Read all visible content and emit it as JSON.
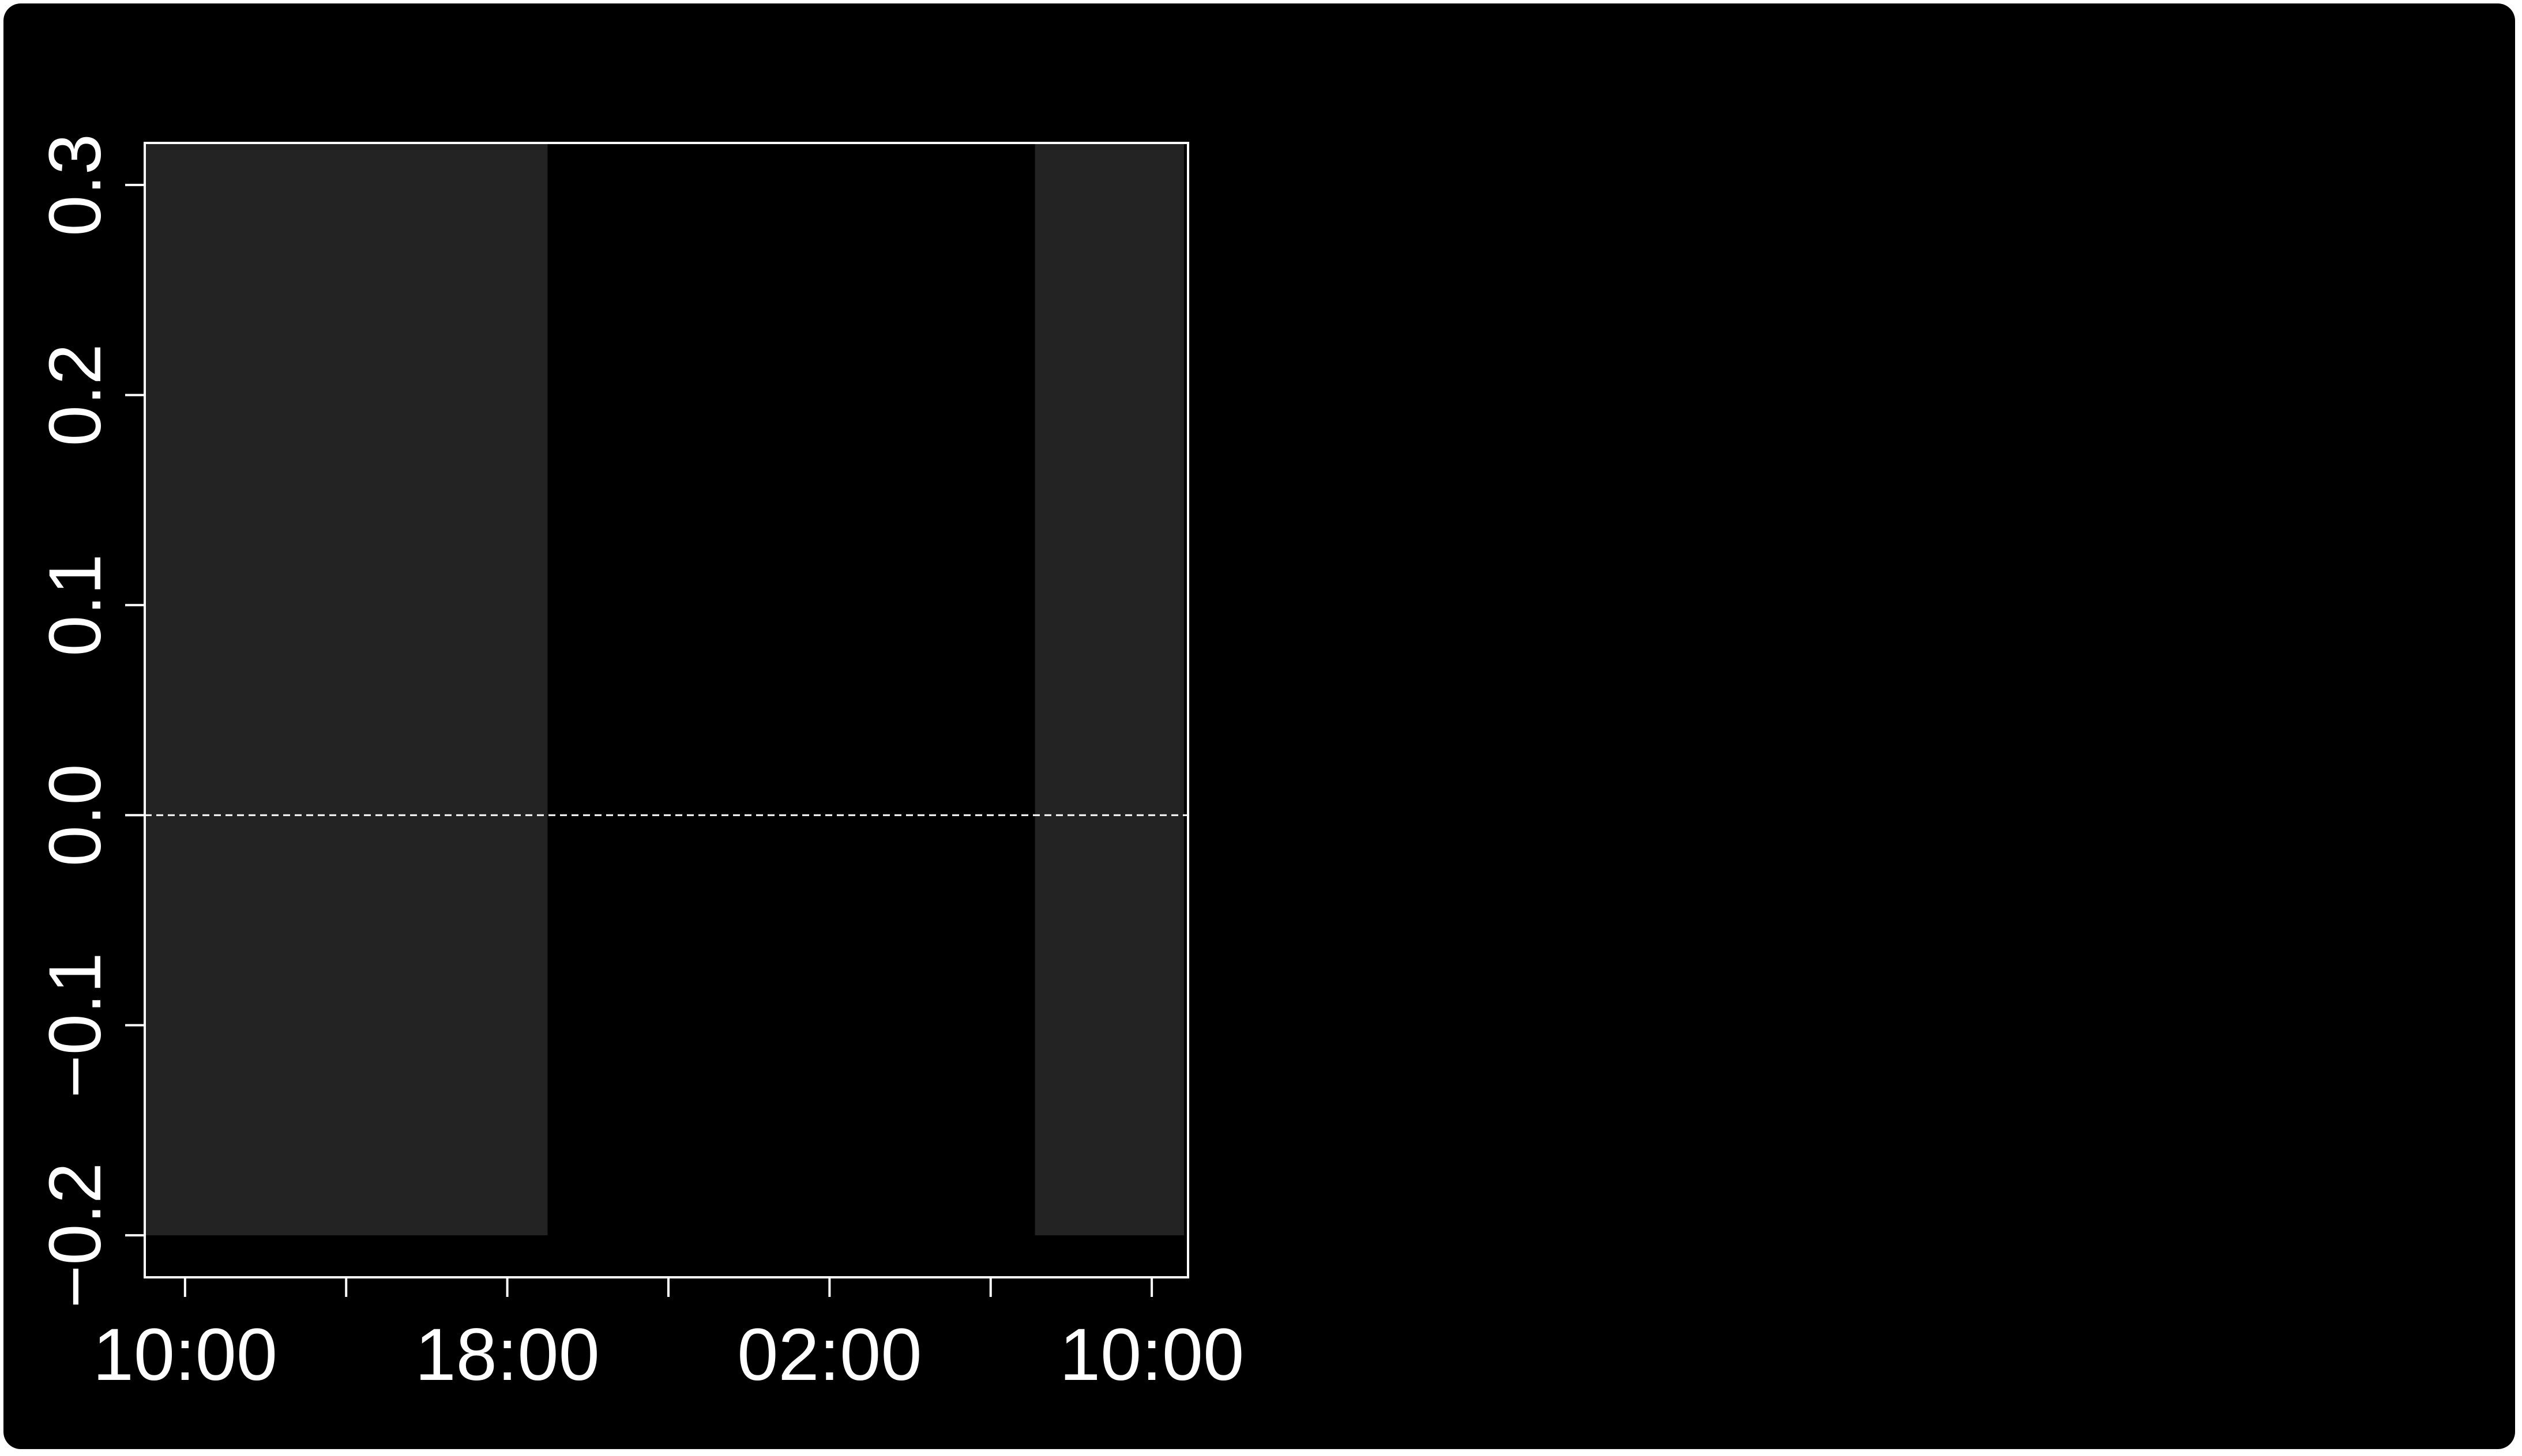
{
  "chart_data": {
    "type": "area",
    "title": "",
    "xlabel": "",
    "ylabel": "",
    "x_ticks": [
      "10:00",
      "18:00",
      "02:00",
      "10:00"
    ],
    "y_ticks": [
      "0.3",
      "0.2",
      "0.1",
      "0.0",
      "-0.1",
      "-0.2"
    ],
    "y_tick_values": [
      0.3,
      0.2,
      0.1,
      0.0,
      -0.1,
      -0.2
    ],
    "ylim": [
      -0.22,
      0.32
    ],
    "xlim_hours": [
      9.0,
      34.9
    ],
    "tick_hours": [
      10,
      14,
      18,
      22,
      26,
      30,
      34
    ],
    "shaded_periods": [
      {
        "start_hour": 9.0,
        "end_hour": 19.0,
        "ymin": -0.2,
        "ymax": 0.32
      },
      {
        "start_hour": 31.1,
        "end_hour": 34.8,
        "ymin": -0.2,
        "ymax": 0.32
      }
    ],
    "reference_line": {
      "y": 0.0,
      "style": "dashed"
    },
    "grid": false,
    "colors": {
      "background": "#000000",
      "shade": "#232323",
      "foreground": "#ffffff"
    }
  }
}
